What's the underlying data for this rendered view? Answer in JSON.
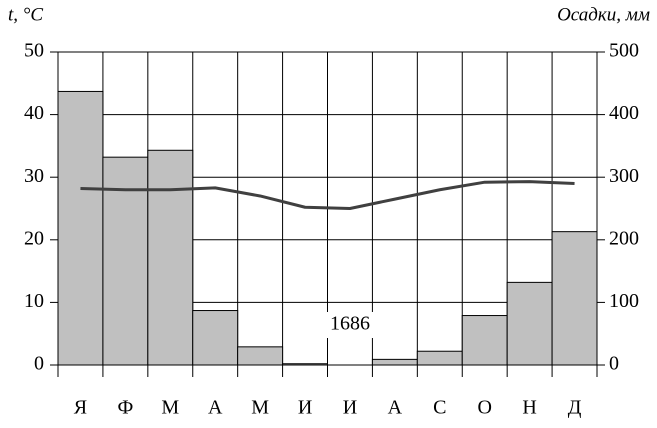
{
  "chart_data": {
    "type": "climate",
    "ylabel": "t, °C",
    "y2label": "Осадки, мм",
    "categories": [
      "Я",
      "Ф",
      "М",
      "А",
      "М",
      "И",
      "И",
      "А",
      "С",
      "О",
      "Н",
      "Д"
    ],
    "series": [
      {
        "name": "Осадки",
        "type": "bar",
        "axis": "y2",
        "color": "#c0c0c0",
        "values": [
          437,
          332,
          343,
          87,
          29,
          2,
          0,
          9,
          22,
          79,
          132,
          213
        ]
      },
      {
        "name": "t",
        "type": "line",
        "color": "#404040",
        "values": [
          28.2,
          28,
          28,
          28.3,
          27,
          25.2,
          25,
          26.5,
          28,
          29.2,
          29.3,
          29
        ]
      }
    ],
    "annotations": [
      "1686"
    ],
    "ylim": [
      0,
      50
    ],
    "yticks": [
      0,
      10,
      20,
      30,
      40,
      50
    ],
    "y2lim": [
      0,
      500
    ],
    "y2ticks": [
      0,
      100,
      200,
      300,
      400,
      500
    ],
    "grid": true
  }
}
